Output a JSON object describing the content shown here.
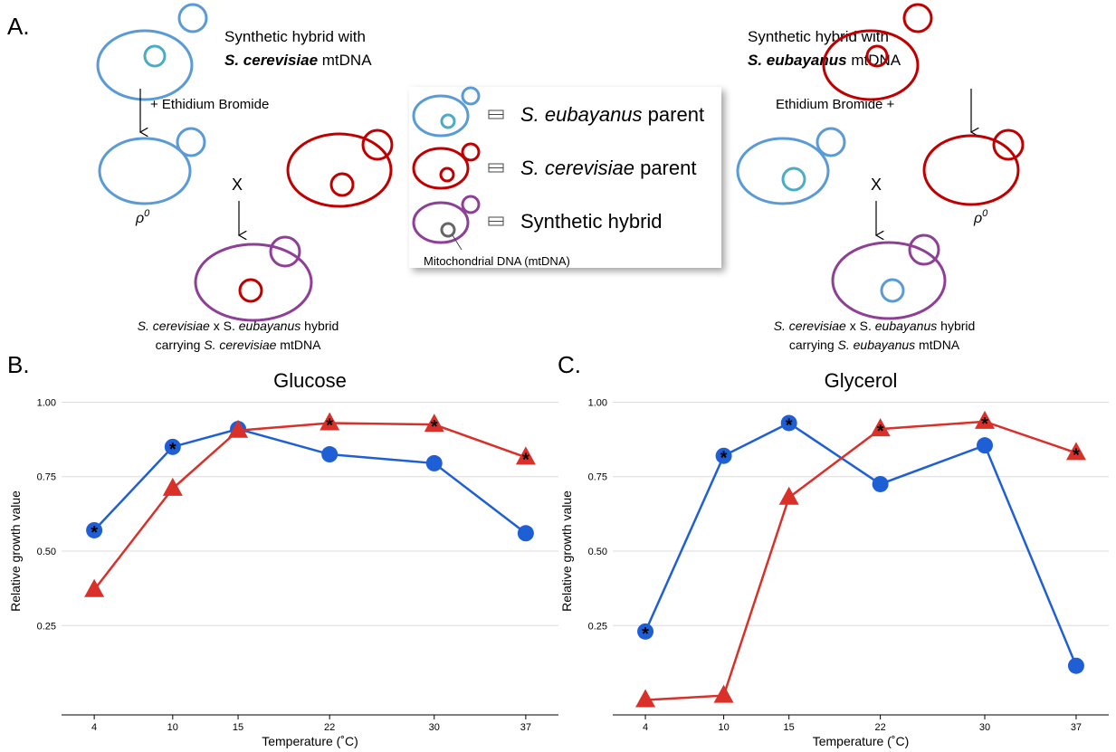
{
  "diagram": {
    "panel_label": "A.",
    "left": {
      "line1": "Synthetic hybrid with",
      "species": "S. cerevisiae",
      "mt": "mtDNA",
      "treatment": "+ Ethidium Bromide",
      "cross": "X",
      "rho": "ρ",
      "rho_sup": "0",
      "result1": {
        "a": "S. cerevisiae",
        "b": "x S.",
        "c": "eubayanus",
        "d": "hybrid"
      },
      "result2": {
        "a": "carrying",
        "b": "S. cerevisiae",
        "c": "mtDNA"
      }
    },
    "right": {
      "line1": "Synthetic hybrid with",
      "species": "S. eubayanus",
      "mt": "mtDNA",
      "treatment": "Ethidium Bromide +",
      "cross": "X",
      "rho": "ρ",
      "rho_sup": "0",
      "result1": {
        "a": "S. cerevisiae",
        "b": "x S.",
        "c": "eubayanus",
        "d": "hybrid"
      },
      "result2": {
        "a": "carrying",
        "b": "S. eubayanus",
        "c": "mtDNA"
      }
    },
    "legend": {
      "item1": {
        "italic": "S. eubayanus",
        "text": "parent"
      },
      "item2": {
        "italic": "S. cerevisiae",
        "text": "parent"
      },
      "item3": "Synthetic hybrid",
      "note": "Mitochondrial DNA (mtDNA)"
    }
  },
  "chart_data": [
    {
      "type": "line",
      "panel_label": "B.",
      "title": "Glucose",
      "ylabel": "Relative growth value",
      "xlabel": "Temperature (˚C)",
      "x": [
        4,
        10,
        15,
        22,
        30,
        37
      ],
      "series": [
        {
          "color": "#1f5fd6",
          "marker": "circle",
          "values": [
            0.57,
            0.85,
            0.91,
            0.825,
            0.795,
            0.56
          ]
        },
        {
          "color": "#d9302a",
          "marker": "triangle",
          "values": [
            0.37,
            0.71,
            0.905,
            0.93,
            0.925,
            0.815
          ]
        }
      ],
      "annotations": [
        {
          "text": "*",
          "x": 4,
          "y": 0.57
        },
        {
          "text": "*",
          "x": 10,
          "y": 0.85
        },
        {
          "text": "*",
          "x": 22,
          "y": 0.93
        },
        {
          "text": "*",
          "x": 30,
          "y": 0.925
        },
        {
          "text": "*",
          "x": 37,
          "y": 0.815
        }
      ],
      "xlim": [
        1.5,
        39.5
      ],
      "xticks": [
        4,
        10,
        15,
        22,
        30,
        37
      ],
      "ylim": [
        -0.05,
        1.05
      ],
      "yticks": [
        {
          "value": 0.25,
          "label": "0.25"
        },
        {
          "value": 0.5,
          "label": "0.50"
        },
        {
          "value": 0.75,
          "label": "0.75"
        },
        {
          "value": 1,
          "label": "1.00"
        }
      ],
      "grid": true
    },
    {
      "type": "line",
      "panel_label": "C.",
      "title": "Glycerol",
      "ylabel": "Relative growth value",
      "xlabel": "Temperature (˚C)",
      "x": [
        4,
        10,
        15,
        22,
        30,
        37
      ],
      "series": [
        {
          "color": "#1f5fd6",
          "marker": "circle",
          "values": [
            0.23,
            0.82,
            0.93,
            0.725,
            0.855,
            0.115
          ]
        },
        {
          "color": "#d9302a",
          "marker": "triangle",
          "values": [
            0.0,
            0.015,
            0.68,
            0.91,
            0.935,
            0.83
          ]
        }
      ],
      "annotations": [
        {
          "text": "*",
          "x": 4,
          "y": 0.23
        },
        {
          "text": "*",
          "x": 10,
          "y": 0.82
        },
        {
          "text": "*",
          "x": 15,
          "y": 0.93
        },
        {
          "text": "*",
          "x": 22,
          "y": 0.91
        },
        {
          "text": "*",
          "x": 30,
          "y": 0.935
        },
        {
          "text": "*",
          "x": 37,
          "y": 0.83
        }
      ],
      "xlim": [
        1.5,
        39.5
      ],
      "xticks": [
        4,
        10,
        15,
        22,
        30,
        37
      ],
      "ylim": [
        -0.05,
        1.05
      ],
      "yticks": [
        {
          "value": 0.25,
          "label": "0.25"
        },
        {
          "value": 0.5,
          "label": "0.50"
        },
        {
          "value": 0.75,
          "label": "0.75"
        },
        {
          "value": 1,
          "label": "1.00"
        }
      ],
      "grid": true
    }
  ]
}
